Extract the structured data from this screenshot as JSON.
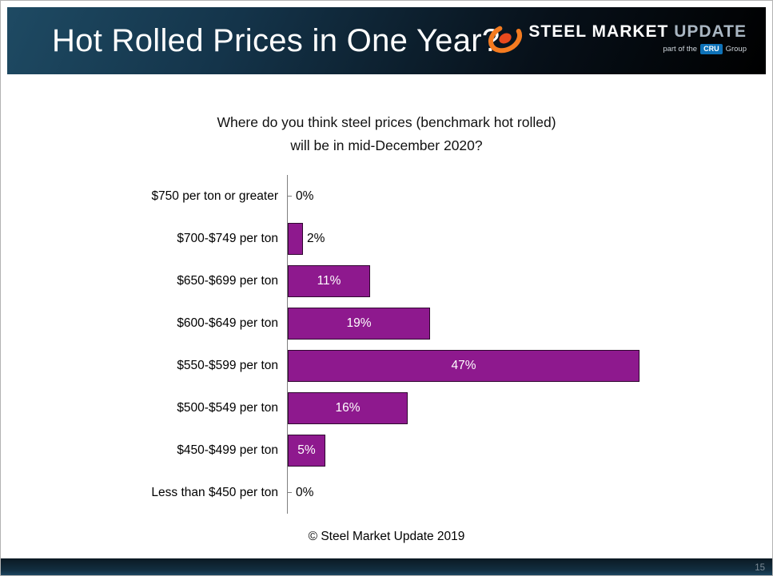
{
  "header": {
    "title": "Hot Rolled Prices in One Year?",
    "logo": {
      "word1": "STEEL",
      "word2": "MARKET",
      "word3": "UPDATE",
      "tagline_prefix": "part of the",
      "tagline_cru": "CRU",
      "tagline_suffix": "Group",
      "swoosh_color": "#f47b20"
    }
  },
  "chart_data": {
    "type": "bar",
    "orientation": "horizontal",
    "title": "Where do you think steel prices (benchmark hot rolled) will be in mid-December 2020?",
    "title_line1": "Where do you think steel prices (benchmark hot rolled)",
    "title_line2": "will be in mid-December 2020?",
    "categories": [
      "$750 per ton or greater",
      "$700-$749 per ton",
      "$650-$699 per ton",
      "$600-$649 per ton",
      "$550-$599 per ton",
      "$500-$549 per ton",
      "$450-$499 per ton",
      "Less than $450 per ton"
    ],
    "values": [
      0,
      2,
      11,
      19,
      47,
      16,
      5,
      0
    ],
    "value_labels": [
      "0%",
      "2%",
      "11%",
      "19%",
      "47%",
      "16%",
      "5%",
      "0%"
    ],
    "bar_color": "#8e198e",
    "bar_border_color": "#2f082f",
    "xlim": [
      0,
      50
    ],
    "grid": false,
    "legend": false
  },
  "footer": {
    "caption": "© Steel Market Update 2019",
    "page_number": "15"
  }
}
